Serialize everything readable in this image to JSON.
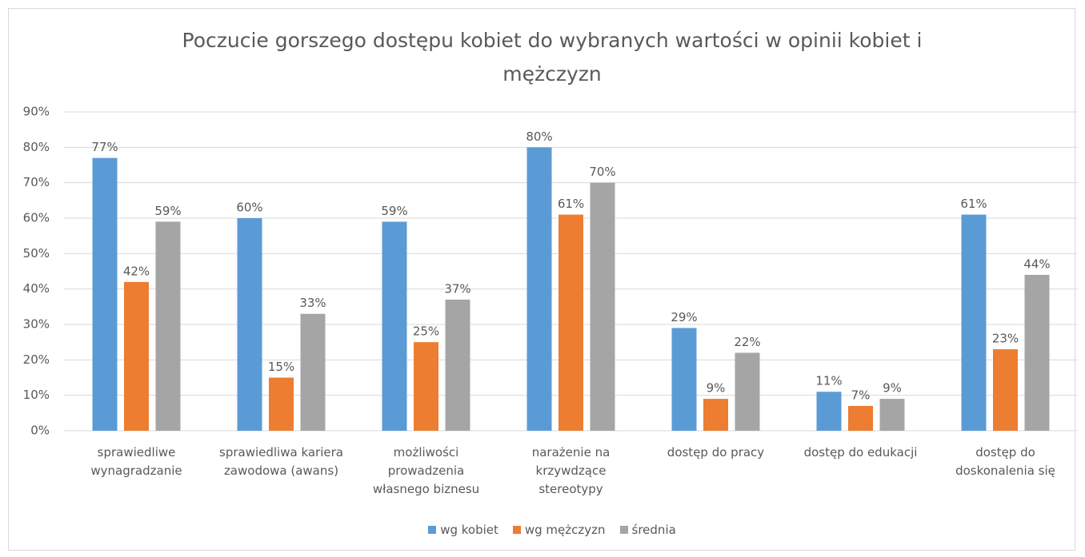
{
  "chart_data": {
    "type": "bar",
    "title": "Poczucie gorszego dostępu kobiet do wybranych wartości w opinii kobiet i mężczyzn",
    "categories": [
      "sprawiedliwe wynagradzanie",
      "sprawiedliwa kariera zawodowa (awans)",
      "możliwości prowadzenia własnego biznesu",
      "narażenie na krzywdzące stereotypy",
      "dostęp do pracy",
      "dostęp do edukacji",
      "dostęp do doskonalenia się"
    ],
    "series": [
      {
        "name": "wg kobiet",
        "color": "#5b9bd5",
        "values": [
          77,
          60,
          59,
          80,
          29,
          11,
          61
        ],
        "value_labels": [
          "77%",
          "60%",
          "59%",
          "80%",
          "29%",
          "11%",
          "61%"
        ]
      },
      {
        "name": "wg mężczyzn",
        "color": "#ed7d31",
        "values": [
          42,
          15,
          25,
          61,
          9,
          7,
          23
        ],
        "value_labels": [
          "42%",
          "15%",
          "25%",
          "61%",
          "9%",
          "7%",
          "23%"
        ]
      },
      {
        "name": "średnia",
        "color": "#a5a5a5",
        "values": [
          59,
          33,
          37,
          70,
          22,
          9,
          44
        ],
        "value_labels": [
          "59%",
          "33%",
          "37%",
          "70%",
          "22%",
          "9%",
          "44%"
        ]
      }
    ],
    "ylim": [
      0,
      90
    ],
    "yticks": [
      {
        "value": 0,
        "label": "0%"
      },
      {
        "value": 10,
        "label": "10%"
      },
      {
        "value": 20,
        "label": "20%"
      },
      {
        "value": 30,
        "label": "30%"
      },
      {
        "value": 40,
        "label": "40%"
      },
      {
        "value": 50,
        "label": "50%"
      },
      {
        "value": 60,
        "label": "60%"
      },
      {
        "value": 70,
        "label": "70%"
      },
      {
        "value": 80,
        "label": "80%"
      },
      {
        "value": 90,
        "label": "90%"
      }
    ],
    "grid": true,
    "legend": "bottom"
  }
}
